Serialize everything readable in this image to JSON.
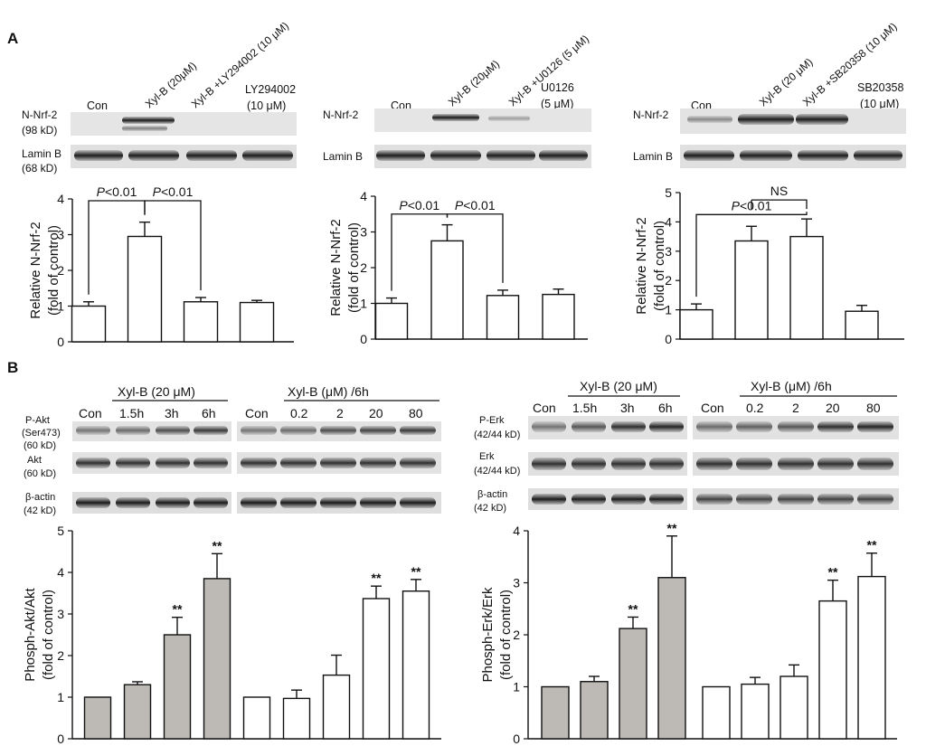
{
  "panel_A": {
    "label": "A",
    "blot1": {
      "lanes": [
        "Con",
        "Xyl-B (20μM)",
        "Xyl-B +LY294002 (10 μM)",
        "LY294002"
      ],
      "lane4_line2": "(10 μM)",
      "row1_name": "N-Nrf-2",
      "row1_kd": "(98 kD)",
      "row2_name": "Lamin B",
      "row2_kd": "(68 kD)"
    },
    "blot2": {
      "lanes": [
        "Con",
        "Xyl-B (20μM)",
        "Xyl-B +U0126 (5 μM)",
        "U0126"
      ],
      "lane4_line2": "(5 μM)",
      "row1_name": "N-Nrf-2",
      "row2_name": "Lamin B"
    },
    "blot3": {
      "lanes": [
        "Con",
        "Xyl-B (20 μM)",
        "Xyl-B +SB20358 (10 μM)",
        "SB20358"
      ],
      "lane4_line2": "(10 μM)",
      "row1_name": "N-Nrf-2",
      "row2_name": "Lamin B"
    }
  },
  "panel_B": {
    "label": "B",
    "akt_blot": {
      "group1_header": "Xyl-B (20 μM)",
      "group2_header": "Xyl-B (μM) /6h",
      "group1_lanes": [
        "Con",
        "1.5h",
        "3h",
        "6h"
      ],
      "group2_lanes": [
        "Con",
        "0.2",
        "2",
        "20",
        "80"
      ],
      "row1_name": "P-Akt",
      "row1_sub": "(Ser473)",
      "row1_kd": "(60 kD)",
      "row2_name": "Akt",
      "row2_kd": "(60 kD)",
      "row3_name": "β-actin",
      "row3_kd": "(42 kD)"
    },
    "erk_blot": {
      "group1_header": "Xyl-B (20 μM)",
      "group2_header": "Xyl-B (μM) /6h",
      "group1_lanes": [
        "Con",
        "1.5h",
        "3h",
        "6h"
      ],
      "group2_lanes": [
        "Con",
        "0.2",
        "2",
        "20",
        "80"
      ],
      "row1_name": "P-Erk",
      "row1_kd": "(42/44 kD)",
      "row2_name": "Erk",
      "row2_kd": "(42/44 kD)",
      "row3_name": "β-actin",
      "row3_kd": "(42 kD)"
    }
  },
  "chart_data": [
    {
      "type": "bar",
      "panel": "A-1",
      "categories": [
        "Con",
        "Xyl-B (20μM)",
        "Xyl-B +LY294002 (10 μM)",
        "LY294002 (10 μM)"
      ],
      "values": [
        1.0,
        2.95,
        1.12,
        1.1
      ],
      "errors": [
        0.12,
        0.4,
        0.12,
        0.06
      ],
      "fills": [
        "#ffffff",
        "#ffffff",
        "#ffffff",
        "#ffffff"
      ],
      "ylabel": "Relative N-Nrf-2",
      "ylabel2": "(fold of control)",
      "ylim": [
        0,
        4
      ],
      "yticks": [
        0,
        1,
        2,
        3,
        4
      ],
      "annotations": [
        {
          "text_p": "P",
          "text": "<0.01",
          "from": 0,
          "to": 1,
          "level": 3.95
        },
        {
          "text_p": "P",
          "text": "<0.01",
          "from": 1,
          "to": 2,
          "level": 3.95
        }
      ],
      "stars": []
    },
    {
      "type": "bar",
      "panel": "A-2",
      "categories": [
        "Con",
        "Xyl-B (20μM)",
        "Xyl-B +U0126 (5 μM)",
        "U0126 (5 μM)"
      ],
      "values": [
        1.0,
        2.75,
        1.22,
        1.25
      ],
      "errors": [
        0.15,
        0.45,
        0.15,
        0.15
      ],
      "fills": [
        "#ffffff",
        "#ffffff",
        "#ffffff",
        "#ffffff"
      ],
      "ylabel": "Relative N-Nrf-2",
      "ylabel2": "(fold of control)",
      "ylim": [
        0,
        4
      ],
      "yticks": [
        0,
        1,
        2,
        3,
        4
      ],
      "annotations": [
        {
          "text_p": "P",
          "text": "<0.01",
          "from": 0,
          "to": 1,
          "level": 3.5
        },
        {
          "text_p": "P",
          "text": "<0.01",
          "from": 1,
          "to": 2,
          "level": 3.5
        }
      ],
      "stars": []
    },
    {
      "type": "bar",
      "panel": "A-3",
      "categories": [
        "Con",
        "Xyl-B (20 μM)",
        "Xyl-B +SB20358 (10 μM)",
        "SB20358 (10 μM)"
      ],
      "values": [
        1.0,
        3.35,
        3.5,
        0.95
      ],
      "errors": [
        0.2,
        0.5,
        0.6,
        0.2
      ],
      "fills": [
        "#ffffff",
        "#ffffff",
        "#ffffff",
        "#ffffff"
      ],
      "ylabel": "Relative N-Nrf-2",
      "ylabel2": "(fold of control)",
      "ylim": [
        0,
        5
      ],
      "yticks": [
        0,
        1,
        2,
        3,
        4,
        5
      ],
      "annotations": [
        {
          "text_p": "P",
          "text": "<0.01",
          "from": 0,
          "to": 2,
          "level": 4.25
        },
        {
          "text_p": "",
          "text": "NS",
          "from": 1,
          "to": 2,
          "level": 4.75,
          "down": true
        }
      ],
      "stars": []
    },
    {
      "type": "bar",
      "panel": "B-Akt",
      "categories": [
        "Con",
        "1.5h",
        "3h",
        "6h",
        "Con",
        "0.2",
        "2",
        "20",
        "80"
      ],
      "values": [
        1.0,
        1.3,
        2.5,
        3.85,
        1.0,
        0.97,
        1.53,
        3.37,
        3.55
      ],
      "errors": [
        0,
        0.07,
        0.42,
        0.6,
        0,
        0.2,
        0.48,
        0.3,
        0.28
      ],
      "fills": [
        "#bdbab5",
        "#bdbab5",
        "#bdbab5",
        "#bdbab5",
        "#ffffff",
        "#ffffff",
        "#ffffff",
        "#ffffff",
        "#ffffff"
      ],
      "ylabel": "Phosph-Akt/Akt",
      "ylabel2": "(fold of control)",
      "ylim": [
        0,
        5
      ],
      "yticks": [
        0,
        1,
        2,
        3,
        4,
        5
      ],
      "annotations": [],
      "stars": [
        "",
        "",
        "**",
        "**",
        "",
        "",
        "",
        "**",
        "**"
      ]
    },
    {
      "type": "bar",
      "panel": "B-Erk",
      "categories": [
        "Con",
        "1.5h",
        "3h",
        "6h",
        "Con",
        "0.2",
        "2",
        "20",
        "80"
      ],
      "values": [
        1.0,
        1.1,
        2.12,
        3.1,
        1.0,
        1.05,
        1.2,
        2.65,
        3.12
      ],
      "errors": [
        0,
        0.1,
        0.22,
        0.8,
        0,
        0.13,
        0.22,
        0.4,
        0.45
      ],
      "fills": [
        "#bdbab5",
        "#bdbab5",
        "#bdbab5",
        "#bdbab5",
        "#ffffff",
        "#ffffff",
        "#ffffff",
        "#ffffff",
        "#ffffff"
      ],
      "ylabel": "Phosph-Erk/Erk",
      "ylabel2": "(fold of control)",
      "ylim": [
        0,
        4
      ],
      "yticks": [
        0,
        1,
        2,
        3,
        4
      ],
      "annotations": [],
      "stars": [
        "",
        "",
        "**",
        "**",
        "",
        "",
        "",
        "**",
        "**"
      ]
    }
  ]
}
